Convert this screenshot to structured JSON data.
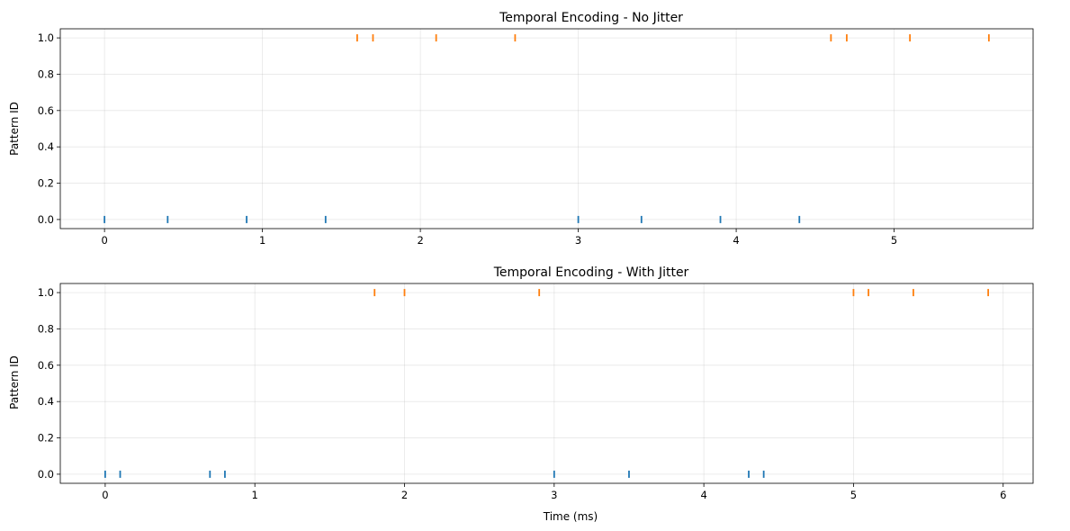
{
  "chart_data": [
    {
      "type": "scatter",
      "title": "Temporal Encoding - No Jitter",
      "xlabel": "",
      "ylabel": "Pattern ID",
      "xlim": [
        -0.28,
        5.88
      ],
      "ylim": [
        -0.05,
        1.05
      ],
      "xticks": [
        0,
        1,
        2,
        3,
        4,
        5
      ],
      "yticks": [
        0.0,
        0.2,
        0.4,
        0.6,
        0.8,
        1.0
      ],
      "grid": true,
      "marker": "vertical-line",
      "series": [
        {
          "color": "#1f77b4",
          "y": 0,
          "x": [
            0,
            0.4,
            0.9,
            1.4,
            3.0,
            3.4,
            3.9,
            4.4
          ]
        },
        {
          "color": "#ff7f0e",
          "y": 1,
          "x": [
            1.6,
            1.7,
            2.1,
            2.6,
            4.6,
            4.7,
            5.1,
            5.6
          ]
        }
      ]
    },
    {
      "type": "scatter",
      "title": "Temporal Encoding - With Jitter",
      "xlabel": "Time (ms)",
      "ylabel": "Pattern ID",
      "xlim": [
        -0.3,
        6.2
      ],
      "ylim": [
        -0.05,
        1.05
      ],
      "xticks": [
        0,
        1,
        2,
        3,
        4,
        5,
        6
      ],
      "yticks": [
        0.0,
        0.2,
        0.4,
        0.6,
        0.8,
        1.0
      ],
      "grid": true,
      "marker": "vertical-line",
      "series": [
        {
          "color": "#1f77b4",
          "y": 0,
          "x": [
            0,
            0.1,
            0.7,
            0.8,
            3.0,
            3.5,
            4.3,
            4.4
          ]
        },
        {
          "color": "#ff7f0e",
          "y": 1,
          "x": [
            1.8,
            2.0,
            2.9,
            5.0,
            5.1,
            5.4,
            5.9
          ]
        }
      ]
    }
  ]
}
